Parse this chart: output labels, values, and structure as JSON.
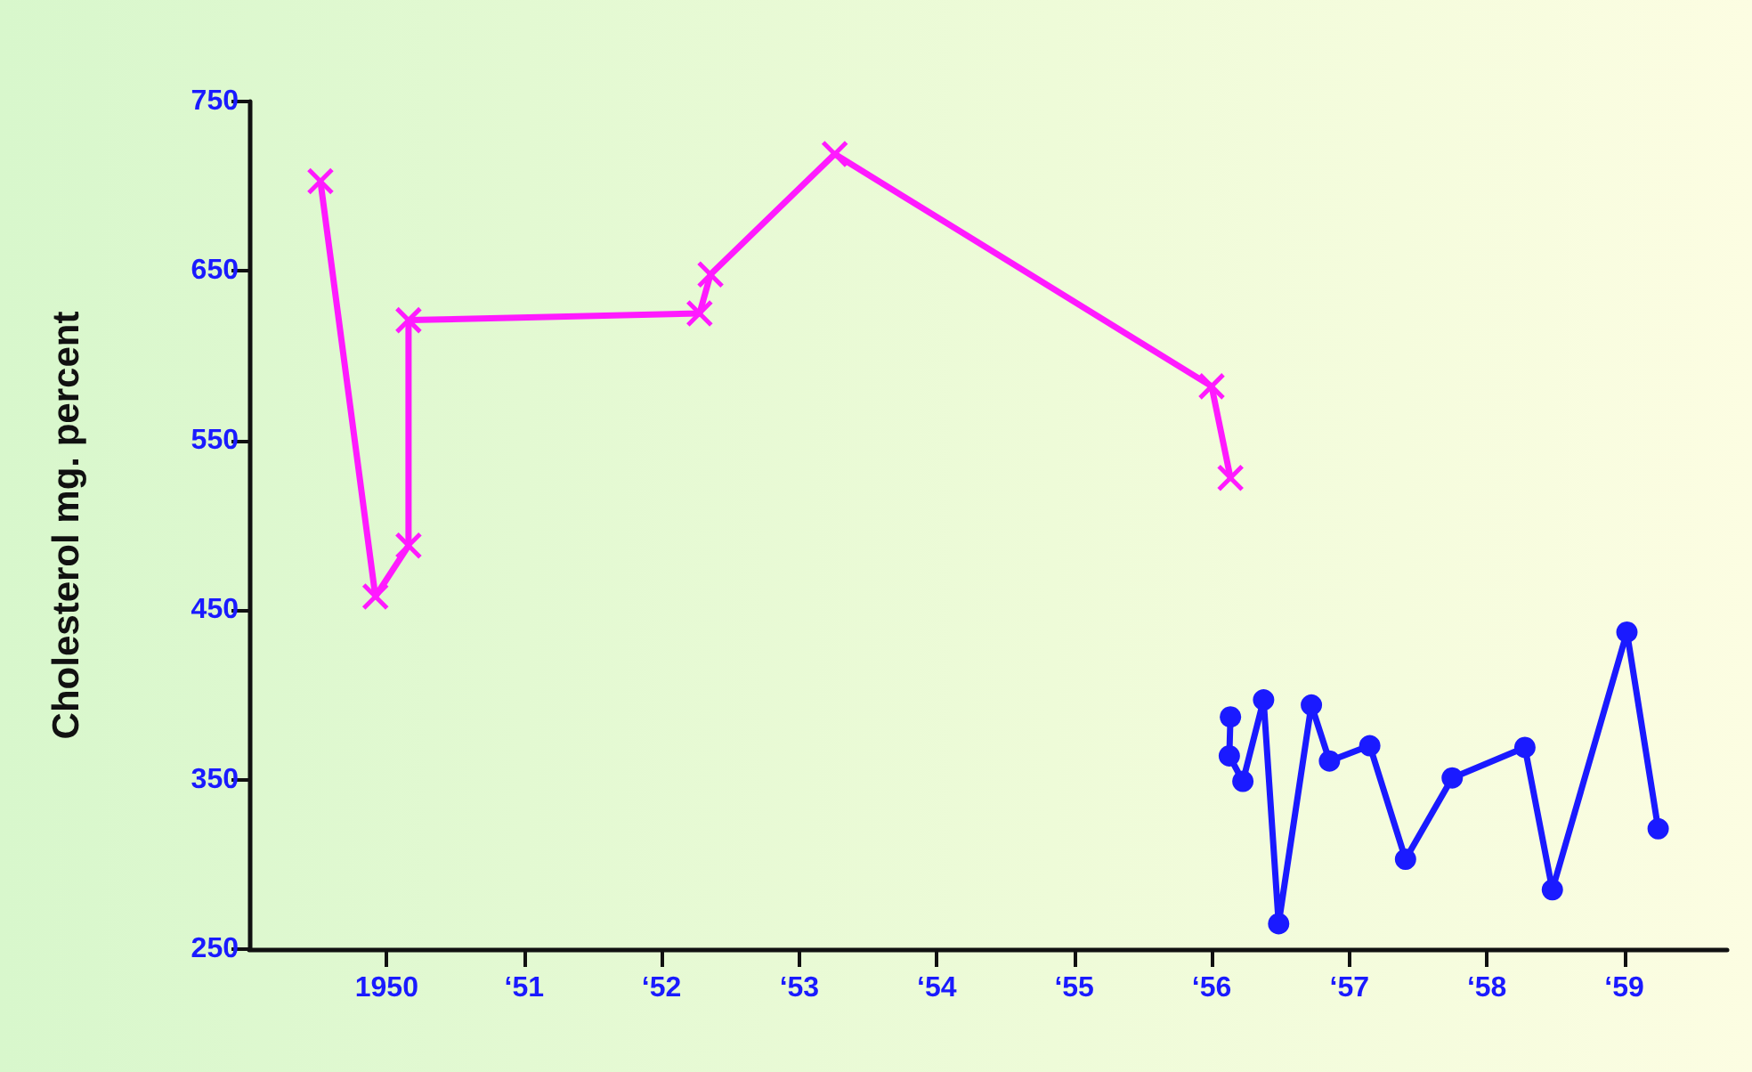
{
  "chart_data": {
    "type": "line",
    "ylabel": "Cholesterol mg. percent",
    "xlim": [
      "1949-01-01",
      "1959-10-01"
    ],
    "xticks": [
      {
        "value": "1950",
        "label": "1950"
      },
      {
        "value": "1951",
        "label": "‘51"
      },
      {
        "value": "1952",
        "label": "‘52"
      },
      {
        "value": "1953",
        "label": "‘53"
      },
      {
        "value": "1954",
        "label": "‘54"
      },
      {
        "value": "1955",
        "label": "‘55"
      },
      {
        "value": "1956",
        "label": "‘56"
      },
      {
        "value": "1957",
        "label": "‘57"
      },
      {
        "value": "1958",
        "label": "‘58"
      },
      {
        "value": "1959",
        "label": "‘59"
      }
    ],
    "ylim": [
      250,
      750
    ],
    "yticks": [
      250,
      350,
      450,
      550,
      650,
      750
    ],
    "grid": false,
    "series": [
      {
        "color": "#ff1aff",
        "marker": "cross",
        "x": [
          "1949-07-09",
          "1949-12-02",
          "1950-02-28",
          "1950-02-28",
          "1952-04-11",
          "1952-05-10",
          "1953-04-05",
          "1956-01-01",
          "1956-02-20"
        ],
        "values": [
          703,
          458,
          488,
          621,
          625,
          648,
          719,
          582,
          528
        ]
      },
      {
        "color": "#1a1aff",
        "marker": "circle",
        "x": [
          "1956-02-20",
          "1956-02-17",
          "1956-03-24",
          "1956-05-18",
          "1956-06-27",
          "1956-09-22",
          "1956-11-09",
          "1957-02-24",
          "1957-05-30",
          "1957-10-01",
          "1958-04-12",
          "1958-06-24",
          "1959-01-08",
          "1959-04-01"
        ],
        "values": [
          387,
          364,
          349,
          397,
          265,
          394,
          361,
          370,
          303,
          351,
          369,
          285,
          437,
          321
        ]
      }
    ]
  }
}
